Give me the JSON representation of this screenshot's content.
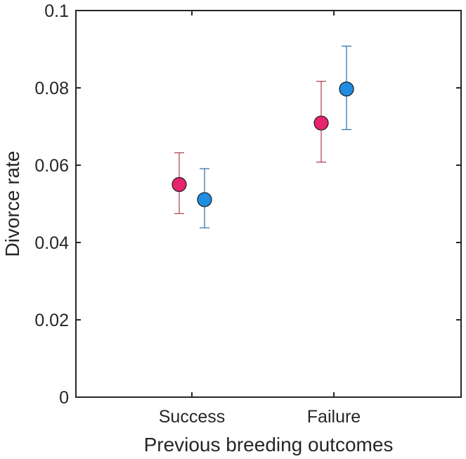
{
  "chart_data": {
    "type": "scatter",
    "xlabel": "Previous breeding outcomes",
    "ylabel": "Divorce rate",
    "categories": [
      "Success",
      "Failure"
    ],
    "ylim": [
      0,
      0.1
    ],
    "yticks": [
      0,
      0.02,
      0.04,
      0.06,
      0.08,
      0.1
    ],
    "ytick_labels": [
      "0",
      "0.02",
      "0.04",
      "0.06",
      "0.08",
      "0.1"
    ],
    "grid": false,
    "series": [
      {
        "color": "#e8246e",
        "error_color": "#b03a48",
        "values": [
          0.055,
          0.0709
        ],
        "lower": [
          0.0475,
          0.0608
        ],
        "upper": [
          0.0632,
          0.0817
        ]
      },
      {
        "color": "#1f8de0",
        "error_color": "#2a6ea8",
        "values": [
          0.0511,
          0.0797
        ],
        "lower": [
          0.0438,
          0.0692
        ],
        "upper": [
          0.0591,
          0.0908
        ]
      }
    ]
  }
}
